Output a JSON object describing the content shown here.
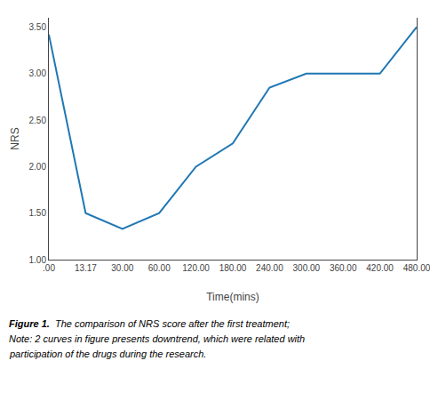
{
  "chart_data": {
    "type": "line",
    "xlabel": "Time(mins)",
    "ylabel": "NRS",
    "categories": [
      ".00",
      "13.17",
      "30.00",
      "60.00",
      "120.00",
      "180.00",
      "240.00",
      "300.00",
      "360.00",
      "420.00",
      "480.00"
    ],
    "values": [
      3.42,
      1.5,
      1.33,
      1.5,
      2.0,
      2.25,
      2.85,
      3.0,
      3.0,
      3.0,
      3.5
    ],
    "ylim": [
      1.0,
      3.6
    ],
    "yticks": [
      {
        "value": 1.0,
        "label": "1.00"
      },
      {
        "value": 1.5,
        "label": "1.50"
      },
      {
        "value": 2.0,
        "label": "2.00"
      },
      {
        "value": 2.5,
        "label": "2.50"
      },
      {
        "value": 3.0,
        "label": "3.00"
      },
      {
        "value": 3.5,
        "label": "3.50"
      }
    ],
    "grid": false,
    "annotations": [
      "Figure 1.",
      "  The comparison of NRS score after the first treatment;",
      "Note: 2 curves in figure presents downtrend, which were related with",
      "participation of the drugs during the research."
    ]
  }
}
